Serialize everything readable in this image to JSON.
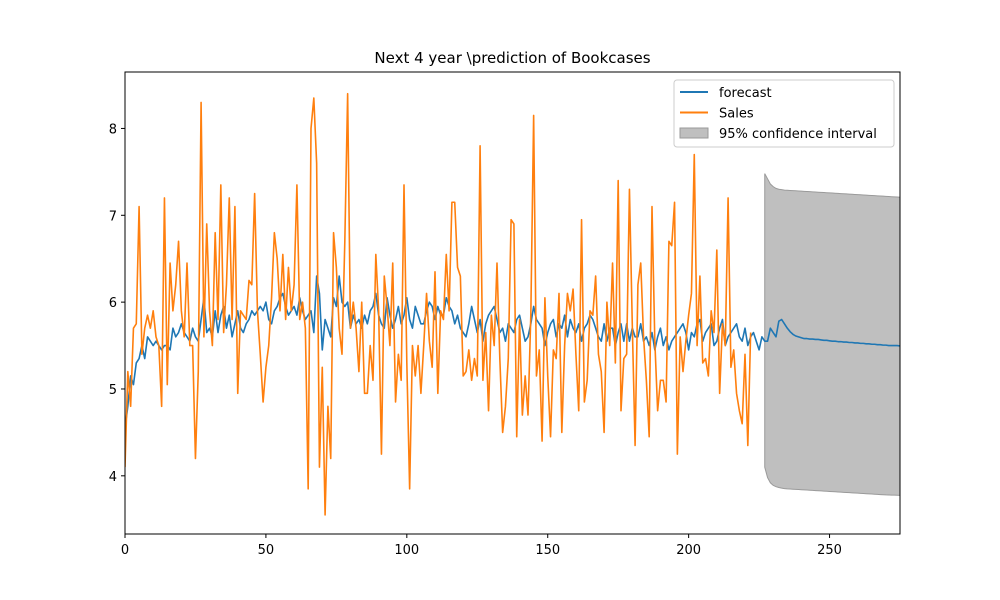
{
  "chart_data": {
    "type": "line",
    "title": "Next 4 year \\prediction of Bookcases",
    "xlabel": "",
    "ylabel": "",
    "xlim": [
      0,
      275
    ],
    "ylim": [
      3.33,
      8.65
    ],
    "x_ticks": [
      0,
      50,
      100,
      150,
      200,
      250
    ],
    "y_ticks": [
      4,
      5,
      6,
      7,
      8
    ],
    "grid": false,
    "legend_position": "top-right",
    "series": [
      {
        "name": "forecast",
        "color": "#1f77b4",
        "x_start": 0,
        "values": [
          4.55,
          4.8,
          5.15,
          5.05,
          5.3,
          5.35,
          5.5,
          5.35,
          5.6,
          5.55,
          5.5,
          5.55,
          5.5,
          5.45,
          5.5,
          5.5,
          5.45,
          5.7,
          5.6,
          5.65,
          5.75,
          5.65,
          5.6,
          5.55,
          5.7,
          5.6,
          5.55,
          5.8,
          6.05,
          5.65,
          5.7,
          5.6,
          5.9,
          5.65,
          5.85,
          5.95,
          5.7,
          5.85,
          5.6,
          5.75,
          5.9,
          5.7,
          5.65,
          5.75,
          5.8,
          5.9,
          5.85,
          5.9,
          5.95,
          5.9,
          6.0,
          5.8,
          5.75,
          5.9,
          5.95,
          6.05,
          6.1,
          5.95,
          5.85,
          5.9,
          5.95,
          5.85,
          6.05,
          5.9,
          5.8,
          5.85,
          5.9,
          5.65,
          6.3,
          6.1,
          5.45,
          5.8,
          5.7,
          5.6,
          6.05,
          5.95,
          6.3,
          6.0,
          5.95,
          6.0,
          5.7,
          5.85,
          5.75,
          5.8,
          5.7,
          5.85,
          5.75,
          5.9,
          5.95,
          6.1,
          5.85,
          5.75,
          5.7,
          6.05,
          5.85,
          5.7,
          5.8,
          5.95,
          5.75,
          5.85,
          6.05,
          5.8,
          5.7,
          5.95,
          5.85,
          5.75,
          5.75,
          5.9,
          6.0,
          5.95,
          5.8,
          5.95,
          5.85,
          5.85,
          6.05,
          5.95,
          5.9,
          5.75,
          5.85,
          5.7,
          5.65,
          5.6,
          5.75,
          5.95,
          5.8,
          5.65,
          5.8,
          5.55,
          5.75,
          5.85,
          5.9,
          5.95,
          5.8,
          5.65,
          5.7,
          5.55,
          5.75,
          5.7,
          5.65,
          5.8,
          5.85,
          5.7,
          5.55,
          5.6,
          5.75,
          5.95,
          5.8,
          5.75,
          5.7,
          5.5,
          5.65,
          5.75,
          5.8,
          5.6,
          5.75,
          5.7,
          5.85,
          5.6,
          5.8,
          5.7,
          5.65,
          5.75,
          5.55,
          5.7,
          5.75,
          5.85,
          5.8,
          5.7,
          5.6,
          5.55,
          5.75,
          5.55,
          5.7,
          5.7,
          5.5,
          5.65,
          5.75,
          5.55,
          5.75,
          5.55,
          5.7,
          5.6,
          5.6,
          5.75,
          5.55,
          5.6,
          5.5,
          5.65,
          5.45,
          5.6,
          5.7,
          5.5,
          5.6,
          5.45,
          5.55,
          5.6,
          5.65,
          5.7,
          5.75,
          5.65,
          5.45,
          5.65,
          5.6,
          5.75,
          5.8,
          5.55,
          5.65,
          5.7,
          5.75,
          5.5,
          5.55,
          5.7,
          5.8,
          5.5,
          5.6,
          5.65,
          5.7,
          5.75,
          5.6,
          5.55,
          5.7,
          5.5,
          5.6,
          5.65,
          5.55,
          5.45,
          5.6,
          5.55,
          5.55,
          5.7,
          5.65,
          5.6,
          5.78,
          5.8,
          5.75,
          5.7,
          5.66,
          5.63,
          5.61,
          5.6,
          5.59,
          5.58,
          5.58,
          5.575,
          5.575,
          5.57,
          5.57,
          5.565,
          5.56,
          5.56,
          5.555,
          5.55,
          5.55,
          5.545,
          5.545,
          5.54,
          5.54,
          5.535,
          5.535,
          5.53,
          5.53,
          5.525,
          5.525,
          5.52,
          5.52,
          5.515,
          5.515,
          5.51,
          5.51,
          5.505,
          5.505,
          5.5,
          5.5,
          5.5,
          5.5,
          5.495,
          5.495,
          5.49,
          5.49
        ]
      },
      {
        "name": "Sales",
        "color": "#ff7f0e",
        "x_start": 0,
        "values": [
          4.1,
          5.2,
          4.8,
          5.7,
          5.75,
          7.1,
          5.4,
          5.7,
          5.85,
          5.7,
          5.9,
          5.6,
          5.5,
          4.8,
          7.2,
          5.05,
          6.45,
          5.9,
          6.2,
          6.7,
          5.9,
          5.6,
          6.45,
          5.5,
          5.5,
          4.2,
          5.2,
          8.3,
          5.6,
          6.9,
          5.9,
          5.5,
          6.8,
          5.8,
          7.35,
          5.65,
          6.2,
          7.2,
          5.8,
          7.1,
          4.95,
          5.9,
          5.85,
          5.8,
          6.25,
          6.2,
          7.25,
          5.9,
          5.4,
          4.85,
          5.25,
          5.5,
          6.05,
          6.8,
          6.5,
          5.9,
          6.55,
          5.8,
          6.4,
          5.9,
          6.2,
          7.35,
          5.8,
          6.0,
          5.7,
          3.85,
          8.0,
          8.35,
          7.6,
          4.1,
          5.25,
          3.55,
          4.8,
          4.2,
          6.8,
          6.4,
          5.7,
          5.4,
          6.7,
          8.4,
          5.7,
          6.0,
          5.7,
          5.2,
          6.0,
          4.95,
          4.95,
          5.5,
          5.1,
          6.55,
          5.9,
          4.25,
          6.3,
          5.95,
          5.5,
          6.45,
          4.85,
          5.4,
          5.1,
          7.35,
          5.3,
          3.85,
          5.5,
          5.15,
          5.5,
          4.95,
          5.5,
          6.1,
          5.55,
          5.25,
          6.35,
          4.95,
          5.9,
          5.8,
          6.55,
          5.9,
          7.15,
          7.15,
          6.4,
          6.3,
          5.15,
          5.2,
          5.45,
          5.1,
          5.35,
          5.15,
          7.8,
          5.1,
          5.65,
          4.75,
          5.85,
          5.5,
          6.45,
          5.35,
          4.5,
          4.8,
          5.35,
          6.95,
          6.9,
          4.45,
          5.8,
          4.7,
          5.15,
          4.7,
          5.85,
          8.15,
          5.15,
          5.45,
          4.4,
          6.05,
          5.15,
          4.45,
          5.45,
          5.35,
          6.1,
          4.5,
          5.5,
          6.1,
          5.9,
          6.15,
          5.4,
          4.75,
          6.95,
          4.85,
          5.1,
          5.9,
          5.85,
          6.3,
          5.4,
          5.2,
          4.5,
          6.0,
          5.5,
          6.45,
          5.3,
          7.4,
          4.75,
          5.35,
          5.4,
          7.3,
          5.75,
          4.35,
          6.2,
          6.45,
          5.6,
          5.1,
          4.45,
          7.1,
          5.55,
          4.75,
          5.1,
          5.1,
          4.85,
          6.7,
          6.65,
          7.15,
          4.25,
          5.6,
          5.2,
          5.55,
          5.85,
          6.1,
          7.7,
          5.5,
          6.3,
          5.3,
          5.35,
          5.15,
          5.9,
          5.65,
          6.6,
          4.95,
          5.75,
          5.5,
          7.2,
          5.25,
          5.45,
          4.95,
          4.75,
          4.6,
          5.4,
          4.35,
          5.65
        ]
      }
    ],
    "confidence_interval": {
      "name": "95% confidence interval",
      "color": "#bfbfbf",
      "x_start": 227,
      "upper": [
        7.48,
        7.42,
        7.36,
        7.33,
        7.31,
        7.3,
        7.295,
        7.29,
        7.288,
        7.286,
        7.284,
        7.282,
        7.28,
        7.278,
        7.276,
        7.274,
        7.272,
        7.27,
        7.268,
        7.266,
        7.264,
        7.262,
        7.26,
        7.258,
        7.256,
        7.254,
        7.252,
        7.25,
        7.248,
        7.246,
        7.244,
        7.242,
        7.24,
        7.238,
        7.236,
        7.234,
        7.232,
        7.23,
        7.228,
        7.226,
        7.224,
        7.222,
        7.22,
        7.218,
        7.216,
        7.214,
        7.212,
        7.21,
        7.208
      ],
      "lower": [
        4.1,
        3.98,
        3.92,
        3.89,
        3.875,
        3.865,
        3.858,
        3.853,
        3.85,
        3.848,
        3.846,
        3.844,
        3.842,
        3.84,
        3.838,
        3.836,
        3.834,
        3.832,
        3.83,
        3.828,
        3.826,
        3.824,
        3.822,
        3.82,
        3.818,
        3.816,
        3.814,
        3.812,
        3.81,
        3.808,
        3.806,
        3.804,
        3.802,
        3.8,
        3.798,
        3.796,
        3.794,
        3.792,
        3.79,
        3.788,
        3.786,
        3.784,
        3.782,
        3.78,
        3.779,
        3.778,
        3.777,
        3.776,
        3.775
      ]
    }
  }
}
